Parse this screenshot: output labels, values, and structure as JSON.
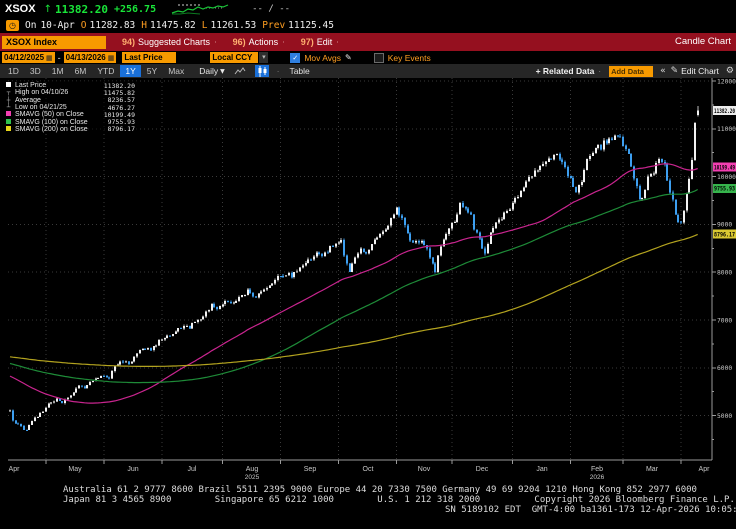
{
  "header": {
    "ticker": "XSOX",
    "direction_arrow": "↑",
    "last": "11382.20",
    "change": "+256.75",
    "range_placeholder": "-- / --",
    "session": {
      "on_label": "On",
      "date": "10-Apr",
      "o_label": "O",
      "open": "11282.83",
      "h_label": "H",
      "high": "11475.82",
      "l_label": "L",
      "low": "11261.53",
      "prev_label": "Prev",
      "prev": "11125.45"
    }
  },
  "menubar": {
    "security": "XSOX Index",
    "items": [
      {
        "num": "94)",
        "label": "Suggested Charts"
      },
      {
        "num": "96)",
        "label": "Actions"
      },
      {
        "num": "97)",
        "label": "Edit"
      }
    ],
    "chart_type_label": "Candle Chart"
  },
  "toolbar": {
    "date_from": "04/12/2025",
    "date_sep": "-",
    "date_to": "04/13/2026",
    "field": "Last Price",
    "currency": "Local CCY",
    "mov_avgs_label": "Mov Avgs",
    "key_events_label": "Key Events"
  },
  "periodbar": {
    "tabs": [
      "1D",
      "3D",
      "1M",
      "6M",
      "YTD",
      "1Y",
      "5Y",
      "Max"
    ],
    "active_tab": "1Y",
    "frequency": "Daily",
    "table_label": "Table",
    "related_data_label": "+ Related Data",
    "add_data_placeholder": "Add Data",
    "edit_chart_label": "Edit Chart"
  },
  "legend": {
    "rows": [
      {
        "swatch": "#ffffff",
        "glyph": "",
        "label": "Last Price",
        "value": "11382.20"
      },
      {
        "swatch": "",
        "glyph": "┬",
        "label": "High on 04/10/26",
        "value": "11475.82"
      },
      {
        "swatch": "",
        "glyph": "┼",
        "label": "Average",
        "value": "8236.57"
      },
      {
        "swatch": "",
        "glyph": "┴",
        "label": "Low on 04/21/25",
        "value": "4676.27"
      },
      {
        "swatch": "#f23fb1",
        "glyph": "",
        "label": "SMAVG (50)  on Close",
        "value": "10199.49"
      },
      {
        "swatch": "#2ec14e",
        "glyph": "",
        "label": "SMAVG (100) on Close",
        "value": "9755.93"
      },
      {
        "swatch": "#e6d519",
        "glyph": "",
        "label": "SMAVG (200) on Close",
        "value": "8796.17"
      }
    ]
  },
  "chart_data": {
    "type": "candlestick",
    "title": "XSOX Index 1Y Daily Candle Chart",
    "stats": {
      "last_price": 11382.2,
      "change": 256.75,
      "high": 11475.82,
      "high_date": "04/10/26",
      "average": 8236.57,
      "low": 4676.27,
      "low_date": "04/21/25",
      "last_open": 11282.83,
      "last_high": 11475.82,
      "last_low": 11261.53,
      "prev_close": 11125.45
    },
    "y_ticks": [
      5000,
      6000,
      7000,
      8000,
      9000,
      10000,
      11000,
      12000
    ],
    "y_minor_step": 500,
    "ylim": [
      4071,
      12063
    ],
    "x_months": [
      "Apr",
      "May",
      "Jun",
      "Jul",
      "Aug",
      "Sep",
      "Oct",
      "Nov",
      "Dec",
      "Jan",
      "Feb",
      "Mar",
      "Apr"
    ],
    "year_labels": [
      {
        "text": "2025",
        "month_index": 4
      },
      {
        "text": "2026",
        "month_index": 10
      }
    ],
    "month_boundaries_t": [
      13,
      34,
      55,
      77,
      98,
      119,
      140,
      160,
      182,
      203,
      222,
      243
    ],
    "trading_days": 250,
    "colors": {
      "up_candle": "#f2f2f2",
      "up_wick": "#bdbdbd",
      "down_candle": "#3d9ff0",
      "down_wick": "#3d9ff0",
      "grid": "#3a3a3a",
      "axis": "#9a9a9a",
      "background": "#000000"
    },
    "smas": [
      {
        "period": 50,
        "color": "#c9258f",
        "last_value": 10199.49,
        "badge_color": "#f23fb1"
      },
      {
        "period": 100,
        "color": "#1e8b38",
        "last_value": 9755.93,
        "badge_color": "#2ec14e"
      },
      {
        "period": 200,
        "color": "#b3a31f",
        "last_value": 8796.17,
        "badge_color": "#e6d519"
      }
    ],
    "badges": [
      {
        "text": "11382.20",
        "price": 11382.2,
        "color": "#ededed"
      },
      {
        "text": "10199.49",
        "price": 10199.49,
        "color": "#f23fb1"
      },
      {
        "text": "9755.93",
        "price": 9755.93,
        "color": "#36b44c"
      },
      {
        "text": "8796.17",
        "price": 8796.17,
        "color": "#d9c832"
      }
    ],
    "prehistory_anchors": [
      [
        -200,
        6250
      ],
      [
        -160,
        6450
      ],
      [
        -120,
        6350
      ],
      [
        -90,
        6400
      ],
      [
        -60,
        6300
      ],
      [
        -40,
        6350
      ],
      [
        -30,
        6100
      ],
      [
        -20,
        5750
      ],
      [
        -12,
        5400
      ],
      [
        -6,
        5150
      ],
      [
        -1,
        5100
      ]
    ],
    "close_anchors": [
      [
        0,
        5080
      ],
      [
        1,
        4880
      ],
      [
        4,
        4760
      ],
      [
        6,
        4700
      ],
      [
        8,
        4900
      ],
      [
        11,
        5050
      ],
      [
        14,
        5250
      ],
      [
        17,
        5350
      ],
      [
        19,
        5280
      ],
      [
        22,
        5450
      ],
      [
        25,
        5600
      ],
      [
        27,
        5550
      ],
      [
        30,
        5750
      ],
      [
        33,
        5850
      ],
      [
        36,
        5800
      ],
      [
        38,
        6000
      ],
      [
        41,
        6150
      ],
      [
        44,
        6100
      ],
      [
        46,
        6300
      ],
      [
        49,
        6420
      ],
      [
        51,
        6380
      ],
      [
        54,
        6550
      ],
      [
        57,
        6650
      ],
      [
        60,
        6750
      ],
      [
        63,
        6900
      ],
      [
        65,
        6850
      ],
      [
        68,
        7000
      ],
      [
        71,
        7150
      ],
      [
        73,
        7300
      ],
      [
        75,
        7250
      ],
      [
        78,
        7400
      ],
      [
        80,
        7300
      ],
      [
        83,
        7500
      ],
      [
        86,
        7600
      ],
      [
        89,
        7450
      ],
      [
        91,
        7600
      ],
      [
        94,
        7750
      ],
      [
        97,
        7900
      ],
      [
        100,
        7980
      ],
      [
        102,
        7900
      ],
      [
        105,
        8100
      ],
      [
        108,
        8250
      ],
      [
        111,
        8400
      ],
      [
        113,
        8300
      ],
      [
        115,
        8450
      ],
      [
        118,
        8600
      ],
      [
        120,
        8650
      ],
      [
        121,
        8300
      ],
      [
        123,
        8050
      ],
      [
        125,
        8300
      ],
      [
        127,
        8500
      ],
      [
        129,
        8400
      ],
      [
        131,
        8600
      ],
      [
        133,
        8750
      ],
      [
        136,
        8900
      ],
      [
        138,
        9150
      ],
      [
        140,
        9300
      ],
      [
        142,
        9100
      ],
      [
        144,
        8800
      ],
      [
        146,
        8600
      ],
      [
        149,
        8700
      ],
      [
        151,
        8500
      ],
      [
        152,
        8300
      ],
      [
        154,
        8000
      ],
      [
        155,
        8350
      ],
      [
        157,
        8700
      ],
      [
        159,
        8900
      ],
      [
        162,
        9200
      ],
      [
        163,
        9400
      ],
      [
        165,
        9350
      ],
      [
        167,
        9250
      ],
      [
        168,
        8900
      ],
      [
        170,
        8700
      ],
      [
        171,
        8500
      ],
      [
        172,
        8400
      ],
      [
        174,
        8800
      ],
      [
        176,
        9000
      ],
      [
        178,
        9150
      ],
      [
        180,
        9300
      ],
      [
        183,
        9500
      ],
      [
        185,
        9650
      ],
      [
        187,
        9900
      ],
      [
        189,
        10050
      ],
      [
        191,
        10100
      ],
      [
        193,
        10250
      ],
      [
        196,
        10400
      ],
      [
        198,
        10500
      ],
      [
        199,
        10350
      ],
      [
        201,
        10200
      ],
      [
        202,
        10050
      ],
      [
        204,
        9800
      ],
      [
        205,
        9650
      ],
      [
        207,
        9900
      ],
      [
        208,
        10150
      ],
      [
        209,
        10400
      ],
      [
        211,
        10500
      ],
      [
        212,
        10650
      ],
      [
        214,
        10600
      ],
      [
        215,
        10700
      ],
      [
        217,
        10750
      ],
      [
        218,
        10800
      ],
      [
        220,
        10900
      ],
      [
        221,
        10850
      ],
      [
        222,
        10700
      ],
      [
        224,
        10500
      ],
      [
        225,
        10200
      ],
      [
        227,
        9800
      ],
      [
        228,
        9500
      ],
      [
        230,
        9700
      ],
      [
        231,
        9950
      ],
      [
        233,
        10100
      ],
      [
        234,
        10300
      ],
      [
        236,
        10350
      ],
      [
        237,
        10200
      ],
      [
        238,
        9900
      ],
      [
        240,
        9500
      ],
      [
        241,
        9150
      ],
      [
        243,
        9000
      ],
      [
        244,
        9300
      ],
      [
        245,
        9700
      ],
      [
        246,
        9950
      ],
      [
        247,
        10350
      ],
      [
        248,
        11125.45
      ],
      [
        249,
        11382.2
      ]
    ],
    "exact_days": {
      "6": 4700,
      "247": 10350,
      "248": 11125.45,
      "249": 11382.2
    }
  },
  "footer": {
    "line1": "Australia 61 2 9777 8600 Brazil 5511 2395 9000 Europe 44 20 7330 7500 Germany 49 69 9204 1210 Hong Kong 852 2977 6000",
    "line2": "Japan 81 3 4565 8900        Singapore 65 6212 1000        U.S. 1 212 318 2000          Copyright 2026 Bloomberg Finance L.P.",
    "line3": "SN 5189102 EDT  GMT-4:00 ba1361-173 12-Apr-2026 10:05:49"
  }
}
